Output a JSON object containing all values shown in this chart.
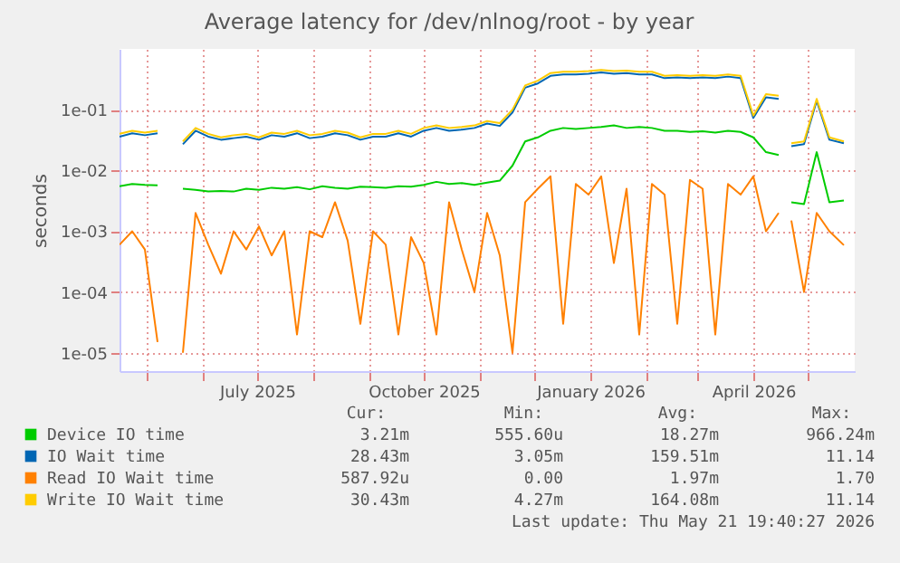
{
  "chart_data": {
    "type": "line",
    "title": "Average latency for /dev/nlnog/root - by year",
    "ylabel": "seconds",
    "x": [
      "2025-04-16",
      "2025-04-23",
      "2025-04-30",
      "2025-05-07",
      "2025-05-14",
      "2025-05-21",
      "2025-05-28",
      "2025-06-04",
      "2025-06-11",
      "2025-06-18",
      "2025-06-25",
      "2025-07-02",
      "2025-07-09",
      "2025-07-16",
      "2025-07-23",
      "2025-07-30",
      "2025-08-06",
      "2025-08-13",
      "2025-08-20",
      "2025-08-27",
      "2025-09-03",
      "2025-09-10",
      "2025-09-17",
      "2025-09-24",
      "2025-10-01",
      "2025-10-08",
      "2025-10-15",
      "2025-10-22",
      "2025-10-29",
      "2025-11-05",
      "2025-11-12",
      "2025-11-19",
      "2025-11-26",
      "2025-12-03",
      "2025-12-10",
      "2025-12-17",
      "2025-12-24",
      "2025-12-31",
      "2026-01-07",
      "2026-01-14",
      "2026-01-21",
      "2026-01-28",
      "2026-02-04",
      "2026-02-11",
      "2026-02-18",
      "2026-02-25",
      "2026-03-04",
      "2026-03-11",
      "2026-03-18",
      "2026-03-25",
      "2026-04-01",
      "2026-04-08",
      "2026-04-15",
      "2026-04-18",
      "2026-04-22",
      "2026-04-29",
      "2026-05-06",
      "2026-05-13",
      "2026-05-21"
    ],
    "series": [
      {
        "name": "Device IO time",
        "color": "#00cc00",
        "values": [
          0.0055,
          0.006,
          0.0058,
          0.0057,
          null,
          0.005,
          0.0048,
          0.0045,
          0.0046,
          0.0045,
          0.005,
          0.0048,
          0.0052,
          0.005,
          0.0053,
          0.0049,
          0.0055,
          0.0052,
          0.005,
          0.0054,
          0.0053,
          0.0052,
          0.0055,
          0.0054,
          0.0058,
          0.0065,
          0.006,
          0.0062,
          0.0058,
          0.0063,
          0.0068,
          0.012,
          0.03,
          0.035,
          0.045,
          0.05,
          0.048,
          0.05,
          0.052,
          0.055,
          0.05,
          0.052,
          0.05,
          0.045,
          0.045,
          0.043,
          0.044,
          0.042,
          0.045,
          0.043,
          0.035,
          0.02,
          0.018,
          null,
          0.003,
          0.0028,
          0.02,
          0.003,
          0.0032
        ]
      },
      {
        "name": "IO Wait time",
        "color": "#0066b3",
        "values": [
          0.036,
          0.041,
          0.038,
          0.041,
          null,
          0.027,
          0.045,
          0.036,
          0.032,
          0.034,
          0.036,
          0.032,
          0.038,
          0.036,
          0.041,
          0.034,
          0.036,
          0.041,
          0.038,
          0.032,
          0.036,
          0.036,
          0.041,
          0.036,
          0.045,
          0.05,
          0.045,
          0.047,
          0.05,
          0.059,
          0.054,
          0.09,
          0.23,
          0.27,
          0.36,
          0.38,
          0.38,
          0.39,
          0.41,
          0.39,
          0.4,
          0.38,
          0.38,
          0.33,
          0.34,
          0.33,
          0.34,
          0.33,
          0.35,
          0.33,
          0.073,
          0.16,
          0.15,
          null,
          0.025,
          0.027,
          0.14,
          0.032,
          0.028
        ]
      },
      {
        "name": "Read IO Wait time",
        "color": "#ff8000",
        "values": [
          0.0006,
          0.001,
          0.0005,
          1.5e-05,
          null,
          1e-05,
          0.002,
          0.0006,
          0.0002,
          0.001,
          0.0005,
          0.0012,
          0.0004,
          0.001,
          2e-05,
          0.001,
          0.0008,
          0.003,
          0.0007,
          3e-05,
          0.001,
          0.0006,
          2e-05,
          0.0008,
          0.0003,
          2e-05,
          0.003,
          0.0005,
          0.0001,
          0.002,
          0.0004,
          1e-05,
          0.003,
          0.005,
          0.008,
          3e-05,
          0.006,
          0.004,
          0.008,
          0.0003,
          0.005,
          2e-05,
          0.006,
          0.004,
          3e-05,
          0.007,
          0.005,
          2e-05,
          0.006,
          0.004,
          0.008,
          0.001,
          0.002,
          null,
          0.0015,
          0.0001,
          0.002,
          0.001,
          0.00059
        ]
      },
      {
        "name": "Write IO Wait time",
        "color": "#ffcc00",
        "values": [
          0.04,
          0.045,
          0.042,
          0.045,
          null,
          0.03,
          0.05,
          0.04,
          0.035,
          0.038,
          0.04,
          0.035,
          0.042,
          0.04,
          0.045,
          0.038,
          0.04,
          0.045,
          0.042,
          0.035,
          0.04,
          0.04,
          0.045,
          0.04,
          0.05,
          0.055,
          0.05,
          0.052,
          0.055,
          0.065,
          0.06,
          0.1,
          0.25,
          0.3,
          0.4,
          0.42,
          0.42,
          0.43,
          0.45,
          0.43,
          0.44,
          0.42,
          0.42,
          0.36,
          0.37,
          0.36,
          0.37,
          0.36,
          0.38,
          0.36,
          0.08,
          0.18,
          0.17,
          null,
          0.028,
          0.03,
          0.15,
          0.035,
          0.03
        ]
      }
    ],
    "log": true,
    "ylim": [
      5e-06,
      1
    ],
    "yticks": [
      {
        "value": 1e-05,
        "label": "1e-05"
      },
      {
        "value": 0.0001,
        "label": "1e-04"
      },
      {
        "value": 0.001,
        "label": "1e-03"
      },
      {
        "value": 0.01,
        "label": "1e-02"
      },
      {
        "value": 0.1,
        "label": "1e-01"
      }
    ],
    "xlim": [
      "2025-04-16",
      "2026-05-27"
    ],
    "xticks": [
      {
        "value": "2025-05-01",
        "label": null
      },
      {
        "value": "2025-06-01",
        "label": null
      },
      {
        "value": "2025-07-01",
        "label": "July 2025"
      },
      {
        "value": "2025-08-01",
        "label": null
      },
      {
        "value": "2025-09-01",
        "label": null
      },
      {
        "value": "2025-10-01",
        "label": "October 2025"
      },
      {
        "value": "2025-11-01",
        "label": null
      },
      {
        "value": "2025-12-01",
        "label": null
      },
      {
        "value": "2026-01-01",
        "label": "January 2026"
      },
      {
        "value": "2026-02-01",
        "label": null
      },
      {
        "value": "2026-03-01",
        "label": null
      },
      {
        "value": "2026-04-01",
        "label": "April 2026"
      },
      {
        "value": "2026-05-01",
        "label": null
      }
    ],
    "grid": true,
    "legend": "bottom",
    "marker": "none",
    "line_style": "solid",
    "annotations": [
      "Cur:",
      "Min:",
      "Avg:",
      "Max:",
      "3.21m",
      "555.60u",
      "18.27m",
      "966.24m",
      "28.43m",
      "3.05m",
      "159.51m",
      "11.14",
      "587.92u",
      "0.00",
      "1.97m",
      "1.70",
      "30.43m",
      "4.27m",
      "164.08m",
      "11.14",
      "Last update: Thu May 21 19:40:27 2026"
    ]
  }
}
